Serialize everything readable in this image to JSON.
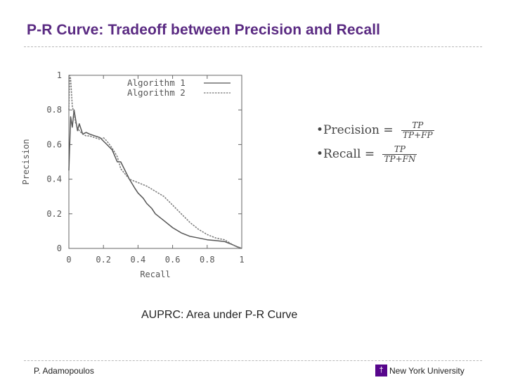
{
  "slide": {
    "title": "P-R Curve: Tradeoff between Precision and Recall",
    "caption": "AUPRC: Area under P-R Curve",
    "author": "P. Adamopoulos",
    "institution": "New York University",
    "logo_icon": "nyu-torch-icon",
    "title_color": "#5a2a82",
    "logo_color": "#57068c"
  },
  "formulas": [
    {
      "bullet": "•",
      "lhs": "Precision = ",
      "numerator": "TP",
      "denominator": "TP+FP"
    },
    {
      "bullet": "•",
      "lhs": "Recall = ",
      "numerator": "TP",
      "denominator": "TP+FN"
    }
  ],
  "chart_data": {
    "type": "line",
    "xlabel": "Recall",
    "ylabel": "Precision",
    "xlim": [
      0,
      1
    ],
    "ylim": [
      0,
      1
    ],
    "xticks": [
      0,
      0.2,
      0.4,
      0.6,
      0.8,
      1
    ],
    "xtick_labels": [
      "0",
      "0.2",
      "0.4",
      "0.6",
      "0.8",
      "1"
    ],
    "yticks": [
      0,
      0.2,
      0.4,
      0.6,
      0.8,
      1
    ],
    "ytick_labels": [
      "0",
      "0.2",
      "0.4",
      "0.6",
      "0.8",
      "1"
    ],
    "grid": false,
    "legend_position": "top-right",
    "series": [
      {
        "name": "Algorithm 1",
        "style": "solid",
        "color": "#555555",
        "x": [
          0,
          0.01,
          0.02,
          0.03,
          0.04,
          0.05,
          0.06,
          0.08,
          0.1,
          0.12,
          0.15,
          0.18,
          0.2,
          0.22,
          0.25,
          0.28,
          0.3,
          0.33,
          0.35,
          0.38,
          0.4,
          0.43,
          0.45,
          0.48,
          0.5,
          0.55,
          0.6,
          0.65,
          0.7,
          0.75,
          0.8,
          0.85,
          0.9,
          0.95,
          0.97,
          1.0
        ],
        "y": [
          0.45,
          0.76,
          0.7,
          0.8,
          0.74,
          0.68,
          0.72,
          0.66,
          0.67,
          0.66,
          0.65,
          0.64,
          0.62,
          0.6,
          0.57,
          0.5,
          0.5,
          0.44,
          0.4,
          0.35,
          0.32,
          0.29,
          0.26,
          0.23,
          0.2,
          0.16,
          0.12,
          0.09,
          0.07,
          0.06,
          0.05,
          0.045,
          0.04,
          0.02,
          0.01,
          0.0
        ]
      },
      {
        "name": "Algorithm 2",
        "style": "dashed",
        "color": "#777777",
        "x": [
          0,
          0.005,
          0.01,
          0.015,
          0.02,
          0.03,
          0.04,
          0.05,
          0.06,
          0.08,
          0.1,
          0.12,
          0.15,
          0.18,
          0.2,
          0.22,
          0.25,
          0.28,
          0.3,
          0.35,
          0.4,
          0.45,
          0.5,
          0.55,
          0.6,
          0.65,
          0.7,
          0.75,
          0.8,
          0.85,
          0.9,
          0.95,
          1.0
        ],
        "y": [
          0.8,
          1.0,
          0.98,
          0.9,
          0.82,
          0.78,
          0.72,
          0.7,
          0.68,
          0.66,
          0.65,
          0.65,
          0.64,
          0.63,
          0.64,
          0.62,
          0.58,
          0.53,
          0.46,
          0.4,
          0.38,
          0.36,
          0.33,
          0.3,
          0.25,
          0.2,
          0.15,
          0.11,
          0.08,
          0.06,
          0.05,
          0.02,
          0.0
        ]
      }
    ]
  }
}
